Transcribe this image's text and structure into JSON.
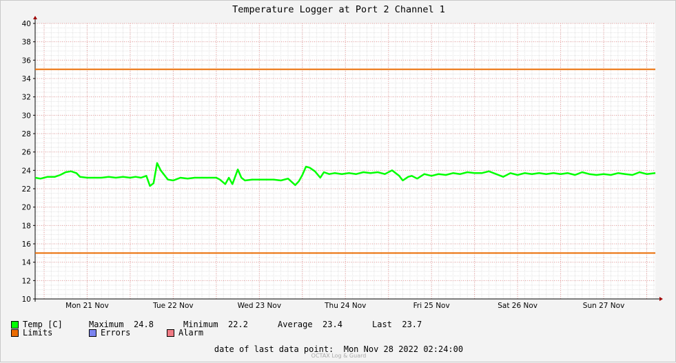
{
  "chart_data": {
    "type": "line",
    "title": "Temperature Logger at Port 2 Channel 1",
    "ylim": [
      10,
      40
    ],
    "y_ticks": [
      10,
      12,
      14,
      16,
      18,
      20,
      22,
      24,
      26,
      28,
      30,
      32,
      34,
      36,
      38,
      40
    ],
    "xlim": [
      "2022-11-20 21:30",
      "2022-11-28 02:24"
    ],
    "x_tick_labels": [
      "Mon 21 Nov",
      "Tue 22 Nov",
      "Wed 23 Nov",
      "Thu 24 Nov",
      "Fri 25 Nov",
      "Sat 26 Nov",
      "Sun 27 Nov"
    ],
    "grid": true,
    "series": [
      {
        "name": "Temp [C]",
        "color": "#00ff00",
        "x": [
          "2022-11-20 21:30",
          "2022-11-20 23:00",
          "2022-11-21 01:00",
          "2022-11-21 03:00",
          "2022-11-21 04:30",
          "2022-11-21 06:00",
          "2022-11-21 07:30",
          "2022-11-21 09:00",
          "2022-11-21 10:00",
          "2022-11-21 12:00",
          "2022-11-21 14:00",
          "2022-11-21 16:00",
          "2022-11-21 18:00",
          "2022-11-21 20:00",
          "2022-11-21 22:00",
          "2022-11-22 00:00",
          "2022-11-22 01:30",
          "2022-11-22 03:00",
          "2022-11-22 04:30",
          "2022-11-22 05:30",
          "2022-11-22 06:30",
          "2022-11-22 07:30",
          "2022-11-22 08:30",
          "2022-11-22 10:30",
          "2022-11-22 12:00",
          "2022-11-22 14:00",
          "2022-11-22 16:00",
          "2022-11-22 18:00",
          "2022-11-22 20:00",
          "2022-11-22 22:00",
          "2022-11-23 00:00",
          "2022-11-23 01:00",
          "2022-11-23 02:30",
          "2022-11-23 03:30",
          "2022-11-23 04:30",
          "2022-11-23 06:00",
          "2022-11-23 07:00",
          "2022-11-23 08:00",
          "2022-11-23 10:00",
          "2022-11-23 12:00",
          "2022-11-23 14:00",
          "2022-11-23 16:00",
          "2022-11-23 18:00",
          "2022-11-23 20:00",
          "2022-11-23 22:00",
          "2022-11-23 23:00",
          "2022-11-24 00:00",
          "2022-11-24 01:00",
          "2022-11-24 02:00",
          "2022-11-24 03:30",
          "2022-11-24 05:00",
          "2022-11-24 06:00",
          "2022-11-24 07:30",
          "2022-11-24 09:00",
          "2022-11-24 11:00",
          "2022-11-24 13:00",
          "2022-11-24 15:00",
          "2022-11-24 17:00",
          "2022-11-24 19:00",
          "2022-11-24 21:00",
          "2022-11-24 23:00",
          "2022-11-25 01:00",
          "2022-11-25 03:00",
          "2022-11-25 04:00",
          "2022-11-25 05:30",
          "2022-11-25 06:30",
          "2022-11-25 08:00",
          "2022-11-25 10:00",
          "2022-11-25 12:00",
          "2022-11-25 14:00",
          "2022-11-25 16:00",
          "2022-11-25 18:00",
          "2022-11-25 20:00",
          "2022-11-25 22:00",
          "2022-11-26 00:00",
          "2022-11-26 02:00",
          "2022-11-26 04:00",
          "2022-11-26 06:00",
          "2022-11-26 08:00",
          "2022-11-26 10:00",
          "2022-11-26 12:00",
          "2022-11-26 14:00",
          "2022-11-26 16:00",
          "2022-11-26 18:00",
          "2022-11-26 20:00",
          "2022-11-26 22:00",
          "2022-11-27 00:00",
          "2022-11-27 02:00",
          "2022-11-27 04:00",
          "2022-11-27 06:00",
          "2022-11-27 08:00",
          "2022-11-27 10:00",
          "2022-11-27 12:00",
          "2022-11-27 14:00",
          "2022-11-27 16:00",
          "2022-11-27 18:00",
          "2022-11-27 20:00",
          "2022-11-27 22:00",
          "2022-11-28 00:00",
          "2022-11-28 02:24"
        ],
        "y": [
          23.2,
          23.1,
          23.3,
          23.3,
          23.5,
          23.8,
          23.9,
          23.7,
          23.3,
          23.2,
          23.2,
          23.2,
          23.3,
          23.2,
          23.3,
          23.2,
          23.3,
          23.2,
          23.4,
          22.3,
          22.6,
          24.8,
          24.0,
          23.0,
          22.9,
          23.2,
          23.1,
          23.2,
          23.2,
          23.2,
          23.2,
          23.0,
          22.5,
          23.2,
          22.5,
          24.1,
          23.2,
          22.9,
          23.0,
          23.0,
          23.0,
          23.0,
          22.9,
          23.1,
          22.4,
          22.8,
          23.5,
          24.4,
          24.3,
          23.9,
          23.2,
          23.8,
          23.6,
          23.7,
          23.6,
          23.7,
          23.6,
          23.8,
          23.7,
          23.8,
          23.6,
          24.0,
          23.4,
          22.9,
          23.3,
          23.4,
          23.1,
          23.6,
          23.4,
          23.6,
          23.5,
          23.7,
          23.6,
          23.8,
          23.7,
          23.7,
          23.9,
          23.6,
          23.3,
          23.7,
          23.5,
          23.7,
          23.6,
          23.7,
          23.6,
          23.7,
          23.6,
          23.7,
          23.5,
          23.8,
          23.6,
          23.5,
          23.6,
          23.5,
          23.7,
          23.6,
          23.5,
          23.8,
          23.6,
          23.7
        ]
      },
      {
        "name": "Limits",
        "color": "#ea6b00",
        "constant": 35
      },
      {
        "name": "Limits",
        "color": "#ea6b00",
        "constant": 15
      }
    ]
  },
  "legend": {
    "temp_label": "Temp [C]",
    "maximum_label": "Maximum",
    "maximum_value": "24.8",
    "minimum_label": "Minimum",
    "minimum_value": "22.2",
    "average_label": "Average",
    "average_value": "23.4",
    "last_label": "Last",
    "last_value": "23.7",
    "limits_label": "Limits",
    "errors_label": "Errors",
    "alarm_label": "Alarm",
    "colors": {
      "temp": "#00ff00",
      "limits": "#ea6b00",
      "errors": "#7b84f0",
      "alarm": "#f07b84"
    }
  },
  "footer": {
    "last_point_label": "date of last data point:",
    "last_point_value": "Mon Nov 28 2022 02:24:00",
    "watermark": "OCTAX Log & Guard"
  }
}
